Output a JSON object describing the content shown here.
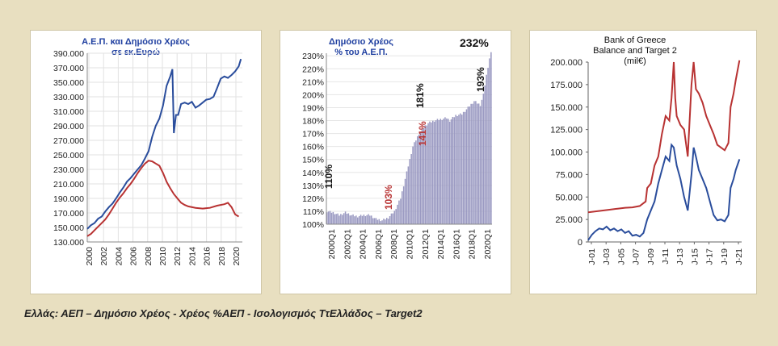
{
  "caption": "Ελλάς: ΑΕΠ – Δημόσιο Χρέος - Χρέος %ΑΕΠ - Ισολογισμός ΤτΕλλάδος – Target2",
  "colors": {
    "blue": "#2a4d9c",
    "red": "#b83232",
    "bars": "#9b9ac2",
    "grid": "#b0b0b0"
  },
  "chart_data": [
    {
      "type": "line",
      "title": "Α.Ε.Π. και Δημόσιο Χρέος",
      "subtitle": "σε εκ.Ευρώ",
      "x_ticks": [
        "2000",
        "2002",
        "2004",
        "2006",
        "2008",
        "2010",
        "2012",
        "2014",
        "2016",
        "2018",
        "2020"
      ],
      "y_ticks": [
        "390.000",
        "370.000",
        "350.000",
        "330.000",
        "310.000",
        "290.000",
        "270.000",
        "250.000",
        "230.000",
        "210.000",
        "190.000",
        "170.000",
        "150.000",
        "130.000"
      ],
      "xlim": [
        2000,
        2021.5
      ],
      "ylim": [
        130000,
        390000
      ],
      "series": [
        {
          "color": "blue",
          "points": [
            [
              2000,
              148000
            ],
            [
              2000.5,
              153000
            ],
            [
              2001,
              156000
            ],
            [
              2001.5,
              162000
            ],
            [
              2002,
              165000
            ],
            [
              2002.5,
              172000
            ],
            [
              2003,
              178000
            ],
            [
              2003.5,
              183000
            ],
            [
              2004,
              190000
            ],
            [
              2004.5,
              198000
            ],
            [
              2005,
              205000
            ],
            [
              2005.5,
              213000
            ],
            [
              2006,
              218000
            ],
            [
              2006.5,
              224000
            ],
            [
              2007,
              230000
            ],
            [
              2007.5,
              236000
            ],
            [
              2008,
              245000
            ],
            [
              2008.5,
              255000
            ],
            [
              2009,
              275000
            ],
            [
              2009.5,
              290000
            ],
            [
              2010,
              300000
            ],
            [
              2010.5,
              318000
            ],
            [
              2011,
              345000
            ],
            [
              2011.5,
              358000
            ],
            [
              2011.8,
              368000
            ],
            [
              2012,
              280000
            ],
            [
              2012.3,
              305000
            ],
            [
              2012.6,
              305000
            ],
            [
              2013,
              320000
            ],
            [
              2013.5,
              322000
            ],
            [
              2014,
              320000
            ],
            [
              2014.5,
              323000
            ],
            [
              2015,
              315000
            ],
            [
              2015.5,
              318000
            ],
            [
              2016,
              322000
            ],
            [
              2016.5,
              326000
            ],
            [
              2017,
              327000
            ],
            [
              2017.5,
              330000
            ],
            [
              2018,
              342000
            ],
            [
              2018.5,
              355000
            ],
            [
              2019,
              358000
            ],
            [
              2019.5,
              356000
            ],
            [
              2020,
              360000
            ],
            [
              2020.5,
              365000
            ],
            [
              2021,
              372000
            ],
            [
              2021.3,
              382000
            ]
          ]
        },
        {
          "color": "red",
          "points": [
            [
              2000,
              138000
            ],
            [
              2000.5,
              141000
            ],
            [
              2001,
              146000
            ],
            [
              2001.5,
              151000
            ],
            [
              2002,
              156000
            ],
            [
              2002.5,
              161000
            ],
            [
              2003,
              168000
            ],
            [
              2003.5,
              176000
            ],
            [
              2004,
              184000
            ],
            [
              2004.5,
              191000
            ],
            [
              2005,
              197000
            ],
            [
              2005.5,
              204000
            ],
            [
              2006,
              210000
            ],
            [
              2006.5,
              217000
            ],
            [
              2007,
              225000
            ],
            [
              2007.5,
              232000
            ],
            [
              2008,
              238000
            ],
            [
              2008.5,
              242000
            ],
            [
              2009,
              241000
            ],
            [
              2009.5,
              238000
            ],
            [
              2010,
              235000
            ],
            [
              2010.5,
              225000
            ],
            [
              2011,
              213000
            ],
            [
              2011.5,
              204000
            ],
            [
              2012,
              196000
            ],
            [
              2012.5,
              190000
            ],
            [
              2013,
              184000
            ],
            [
              2013.5,
              181000
            ],
            [
              2014,
              179000
            ],
            [
              2015,
              177000
            ],
            [
              2016,
              176000
            ],
            [
              2017,
              177000
            ],
            [
              2018,
              180000
            ],
            [
              2019,
              182000
            ],
            [
              2019.5,
              184000
            ],
            [
              2020,
              178000
            ],
            [
              2020.5,
              168000
            ],
            [
              2021,
              165000
            ]
          ]
        }
      ]
    },
    {
      "type": "bar",
      "title": "Δημόσιο Χρέος",
      "subtitle": "% του Α.Ε.Π.",
      "x_ticks": [
        "2000Q1",
        "2002Q1",
        "2004Q1",
        "2006Q1",
        "2008Q1",
        "2010Q1",
        "2012Q1",
        "2014Q1",
        "2016Q1",
        "2018Q1",
        "2020Q1"
      ],
      "y_ticks": [
        "230%",
        "220%",
        "210%",
        "200%",
        "190%",
        "180%",
        "170%",
        "160%",
        "150%",
        "140%",
        "130%",
        "120%",
        "110%",
        "100%"
      ],
      "ylim": [
        100,
        232
      ],
      "annotations": [
        {
          "text": "110%",
          "color": "black"
        },
        {
          "text": "103%",
          "color": "red"
        },
        {
          "text": "141%",
          "color": "red"
        },
        {
          "text": "181%",
          "color": "black"
        },
        {
          "text": "193%",
          "color": "black"
        },
        {
          "text": "232%",
          "color": "black"
        }
      ],
      "anchors": [
        [
          0,
          110
        ],
        [
          4,
          109
        ],
        [
          8,
          107
        ],
        [
          12,
          109
        ],
        [
          16,
          107
        ],
        [
          20,
          106
        ],
        [
          24,
          107
        ],
        [
          28,
          107
        ],
        [
          32,
          104
        ],
        [
          36,
          103
        ],
        [
          40,
          105
        ],
        [
          44,
          110
        ],
        [
          48,
          120
        ],
        [
          52,
          140
        ],
        [
          56,
          160
        ],
        [
          60,
          170
        ],
        [
          64,
          176
        ],
        [
          66,
          178
        ],
        [
          70,
          180
        ],
        [
          74,
          181
        ],
        [
          78,
          182
        ],
        [
          80,
          180
        ],
        [
          84,
          184
        ],
        [
          88,
          185
        ],
        [
          92,
          190
        ],
        [
          96,
          195
        ],
        [
          100,
          192
        ],
        [
          102,
          200
        ],
        [
          104,
          215
        ],
        [
          106,
          228
        ],
        [
          107,
          232
        ]
      ]
    },
    {
      "type": "line",
      "title": "Bank of Greece",
      "subtitle": "Balance and Target 2",
      "unit": "(mil€)",
      "x_ticks": [
        "J-01",
        "J-03",
        "J-05",
        "J-07",
        "J-09",
        "J-11",
        "J-13",
        "J-15",
        "J-17",
        "J-19",
        "J-21"
      ],
      "y_ticks": [
        "200.000",
        "175.000",
        "150.000",
        "125.000",
        "100.000",
        "75.000",
        "50.000",
        "25.000",
        "0"
      ],
      "xlim": [
        2001,
        2021.8
      ],
      "ylim": [
        0,
        200000
      ],
      "series": [
        {
          "color": "red",
          "points": [
            [
              2001,
              33000
            ],
            [
              2002,
              34000
            ],
            [
              2003,
              35000
            ],
            [
              2004,
              36000
            ],
            [
              2005,
              37000
            ],
            [
              2006,
              38000
            ],
            [
              2007,
              38500
            ],
            [
              2008,
              40000
            ],
            [
              2008.8,
              45000
            ],
            [
              2009,
              60000
            ],
            [
              2009.5,
              65000
            ],
            [
              2010,
              85000
            ],
            [
              2010.5,
              95000
            ],
            [
              2011,
              120000
            ],
            [
              2011.5,
              140000
            ],
            [
              2012,
              135000
            ],
            [
              2012.3,
              160000
            ],
            [
              2012.6,
              200000
            ],
            [
              2012.8,
              160000
            ],
            [
              2013,
              140000
            ],
            [
              2013.5,
              130000
            ],
            [
              2014,
              125000
            ],
            [
              2014.5,
              95000
            ],
            [
              2015,
              175000
            ],
            [
              2015.3,
              200000
            ],
            [
              2015.6,
              170000
            ],
            [
              2016,
              165000
            ],
            [
              2016.5,
              155000
            ],
            [
              2017,
              140000
            ],
            [
              2017.5,
              130000
            ],
            [
              2018,
              120000
            ],
            [
              2018.5,
              108000
            ],
            [
              2019,
              105000
            ],
            [
              2019.5,
              102000
            ],
            [
              2020,
              110000
            ],
            [
              2020.3,
              150000
            ],
            [
              2020.7,
              165000
            ],
            [
              2021,
              180000
            ],
            [
              2021.5,
              202000
            ]
          ]
        },
        {
          "color": "blue",
          "points": [
            [
              2001,
              2000
            ],
            [
              2001.5,
              8000
            ],
            [
              2002,
              12000
            ],
            [
              2002.5,
              15000
            ],
            [
              2003,
              14000
            ],
            [
              2003.5,
              17000
            ],
            [
              2004,
              13000
            ],
            [
              2004.5,
              15000
            ],
            [
              2005,
              12000
            ],
            [
              2005.5,
              14000
            ],
            [
              2006,
              10000
            ],
            [
              2006.5,
              12000
            ],
            [
              2007,
              7000
            ],
            [
              2007.5,
              8000
            ],
            [
              2008,
              6000
            ],
            [
              2008.5,
              10000
            ],
            [
              2009,
              25000
            ],
            [
              2009.5,
              35000
            ],
            [
              2010,
              45000
            ],
            [
              2010.5,
              65000
            ],
            [
              2011,
              80000
            ],
            [
              2011.5,
              95000
            ],
            [
              2012,
              90000
            ],
            [
              2012.3,
              108000
            ],
            [
              2012.6,
              105000
            ],
            [
              2013,
              85000
            ],
            [
              2013.5,
              70000
            ],
            [
              2014,
              50000
            ],
            [
              2014.5,
              35000
            ],
            [
              2015,
              75000
            ],
            [
              2015.3,
              105000
            ],
            [
              2015.6,
              95000
            ],
            [
              2016,
              80000
            ],
            [
              2016.5,
              70000
            ],
            [
              2017,
              60000
            ],
            [
              2017.5,
              45000
            ],
            [
              2018,
              30000
            ],
            [
              2018.5,
              24000
            ],
            [
              2019,
              25000
            ],
            [
              2019.5,
              23000
            ],
            [
              2020,
              30000
            ],
            [
              2020.3,
              60000
            ],
            [
              2020.7,
              70000
            ],
            [
              2021,
              80000
            ],
            [
              2021.5,
              92000
            ]
          ]
        }
      ]
    }
  ]
}
